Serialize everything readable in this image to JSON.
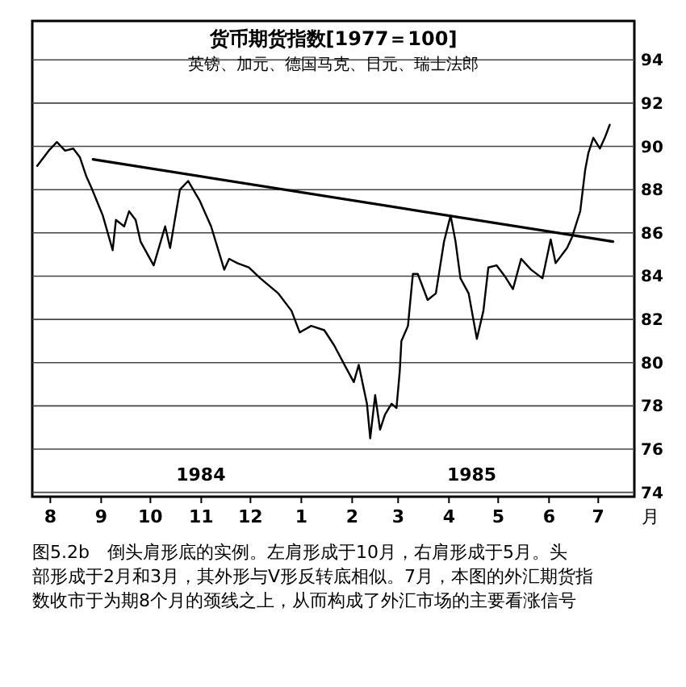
{
  "chart_data": {
    "type": "line",
    "title": "货币期货指数[1977＝100]",
    "subtitle": "英镑、加元、德国马克、日元、瑞士法郎",
    "xlabel": "月",
    "xlim": [
      "1984-08-04",
      "1985-08-06"
    ],
    "ylim": [
      73.8,
      95.8
    ],
    "xticks": [
      {
        "value": "1984-08-15",
        "label": "8"
      },
      {
        "value": "1984-09-15",
        "label": "9"
      },
      {
        "value": "1984-10-15",
        "label": "10"
      },
      {
        "value": "1984-11-15",
        "label": "11"
      },
      {
        "value": "1984-12-15",
        "label": "12"
      },
      {
        "value": "1985-01-15",
        "label": "1"
      },
      {
        "value": "1985-02-15",
        "label": "2"
      },
      {
        "value": "1985-03-15",
        "label": "3"
      },
      {
        "value": "1985-04-15",
        "label": "4"
      },
      {
        "value": "1985-05-15",
        "label": "5"
      },
      {
        "value": "1985-06-15",
        "label": "6"
      },
      {
        "value": "1985-07-15",
        "label": "7"
      }
    ],
    "yticks": [
      74,
      76,
      78,
      80,
      82,
      84,
      86,
      88,
      90,
      92,
      94
    ],
    "grid": "y",
    "line_style": "solid",
    "marker": "none",
    "series": [
      {
        "color": "#000000",
        "x": [
          "1984-08-07",
          "1984-08-14",
          "1984-08-19",
          "1984-08-24",
          "1984-08-29",
          "1984-09-02",
          "1984-09-06",
          "1984-09-09",
          "1984-09-16",
          "1984-09-22",
          "1984-09-24",
          "1984-09-29",
          "1984-10-02",
          "1984-10-06",
          "1984-10-09",
          "1984-10-17",
          "1984-10-24",
          "1984-10-27",
          "1984-11-02",
          "1984-11-07",
          "1984-11-14",
          "1984-11-21",
          "1984-11-29",
          "1984-12-02",
          "1984-12-07",
          "1984-12-14",
          "1984-12-21",
          "1985-01-01",
          "1985-01-09",
          "1985-01-14",
          "1985-01-21",
          "1985-01-29",
          "1985-02-04",
          "1985-02-11",
          "1985-02-16",
          "1985-02-19",
          "1985-02-24",
          "1985-02-26",
          "1985-03-01",
          "1985-03-04",
          "1985-03-07",
          "1985-03-11",
          "1985-03-14",
          "1985-03-16",
          "1985-03-17",
          "1985-03-21",
          "1985-03-24",
          "1985-03-27",
          "1985-04-02",
          "1985-04-07",
          "1985-04-12",
          "1985-04-16",
          "1985-04-19",
          "1985-04-22",
          "1985-04-27",
          "1985-05-02",
          "1985-05-06",
          "1985-05-09",
          "1985-05-14",
          "1985-05-19",
          "1985-05-24",
          "1985-05-29",
          "1985-06-04",
          "1985-06-11",
          "1985-06-16",
          "1985-06-19",
          "1985-06-26",
          "1985-06-29",
          "1985-07-04",
          "1985-07-07",
          "1985-07-09",
          "1985-07-12",
          "1985-07-16",
          "1985-07-19",
          "1985-07-22"
        ],
        "values": [
          89.1,
          89.8,
          90.2,
          89.8,
          89.9,
          89.5,
          88.6,
          88.1,
          86.8,
          85.2,
          86.6,
          86.3,
          87.0,
          86.6,
          85.6,
          84.5,
          86.3,
          85.3,
          88.0,
          88.4,
          87.5,
          86.3,
          84.3,
          84.8,
          84.6,
          84.4,
          83.9,
          83.2,
          82.4,
          81.4,
          81.7,
          81.5,
          80.8,
          79.8,
          79.1,
          79.9,
          78.1,
          76.5,
          78.5,
          76.9,
          77.6,
          78.1,
          77.9,
          79.6,
          81.0,
          81.7,
          84.1,
          84.1,
          82.9,
          83.2,
          85.6,
          86.8,
          85.6,
          83.9,
          83.2,
          81.1,
          82.4,
          84.4,
          84.5,
          84.0,
          83.4,
          84.8,
          84.3,
          83.9,
          85.7,
          84.6,
          85.3,
          85.8,
          87.0,
          88.9,
          89.7,
          90.4,
          89.9,
          90.4,
          91.0
        ]
      },
      {
        "type": "line",
        "color": "#000000",
        "x": [
          "1984-09-10",
          "1985-07-24"
        ],
        "values": [
          89.4,
          85.6
        ]
      }
    ],
    "annotations": [
      "1984",
      "1985",
      "图5.2b　倒头肩形底的实例。左肩形成于10月，右肩形成于5月。头部形成于2月和3月，其外形与V形反转底相似。7月，本图的外汇期货指数收市于为期8个月的颈线之上，从而构成了外汇市场的主要看涨信号"
    ]
  }
}
